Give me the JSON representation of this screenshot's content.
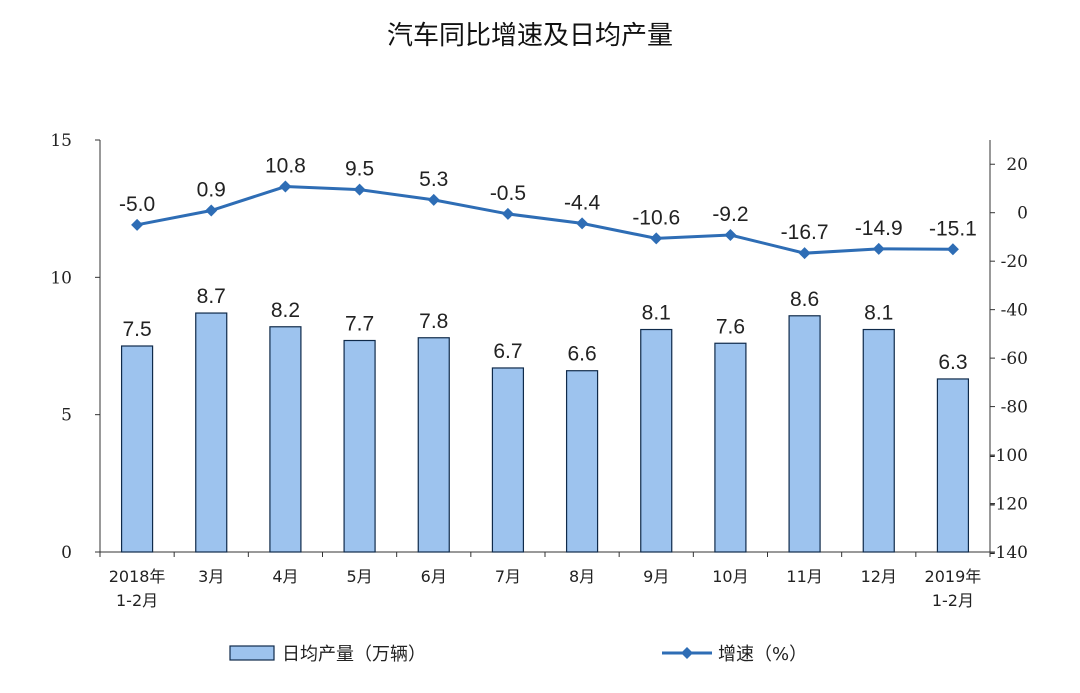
{
  "colors": {
    "bar_fill": "#9dc3ee",
    "bar_stroke": "#0f2a4a",
    "line": "#2e6db5",
    "axis": "#333333"
  },
  "chart_data": {
    "type": "bar+line",
    "title": "汽车同比增速及日均产量",
    "categories": [
      [
        "2018年",
        "1-2月"
      ],
      [
        "3月"
      ],
      [
        "4月"
      ],
      [
        "5月"
      ],
      [
        "6月"
      ],
      [
        "7月"
      ],
      [
        "8月"
      ],
      [
        "9月"
      ],
      [
        "10月"
      ],
      [
        "11月"
      ],
      [
        "12月"
      ],
      [
        "2019年",
        "1-2月"
      ]
    ],
    "series": [
      {
        "name": "日均产量（万辆）",
        "type": "bar",
        "axis": "left",
        "values": [
          7.5,
          8.7,
          8.2,
          7.7,
          7.8,
          6.7,
          6.6,
          8.1,
          7.6,
          8.6,
          8.1,
          6.3
        ]
      },
      {
        "name": "增速（%）",
        "type": "line",
        "axis": "right",
        "values": [
          -5.0,
          0.9,
          10.8,
          9.5,
          5.3,
          -0.5,
          -4.4,
          -10.6,
          -9.2,
          -16.7,
          -14.9,
          -15.1
        ]
      }
    ],
    "y_left": {
      "range": [
        0,
        15
      ],
      "ticks": [
        0,
        5,
        10,
        15
      ]
    },
    "y_right": {
      "range": [
        -140,
        30
      ],
      "ticks": [
        20,
        0,
        -20,
        -40,
        -60,
        -80,
        -100,
        -120,
        -140
      ]
    },
    "grid": false,
    "legend_position": "bottom"
  }
}
